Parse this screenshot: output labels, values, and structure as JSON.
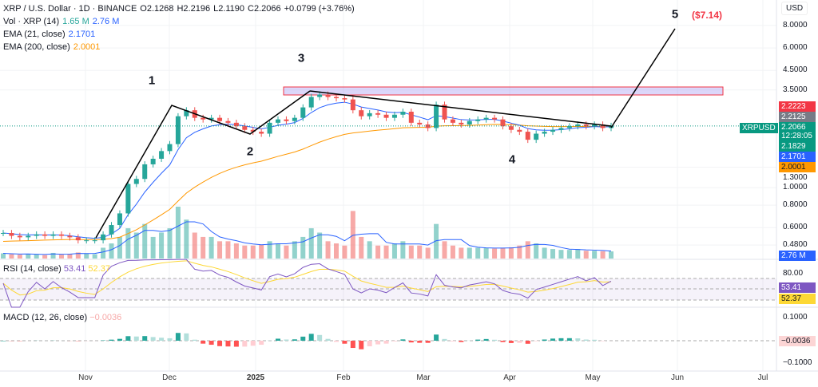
{
  "header": {
    "symbol": "XRP / U.S. Dollar · 1D · BINANCE",
    "open": "O2.1268",
    "high": "H2.2196",
    "low": "L2.1190",
    "close": "C2.2066",
    "change": "+0.0799 (+3.76%)"
  },
  "legend": {
    "vol_label": "Vol · XRP (14)",
    "vol_value": "1.65 M",
    "vol_ma": "2.76 M",
    "ema21_label": "EMA (21, close)",
    "ema21_value": "2.1701",
    "ema200_label": "EMA (200, close)",
    "ema200_value": "2.0001",
    "rsi_label": "RSI (14, close)",
    "rsi_value": "53.41",
    "rsi_ma": "52.37",
    "macd_label": "MACD (12, 26, close)",
    "macd_value": "−0.0036"
  },
  "axis": {
    "currency": "USD",
    "price_ticks": [
      "8.0000",
      "6.0000",
      "4.5000",
      "3.5000",
      "1.3000",
      "1.0000",
      "0.8000",
      "0.6000",
      "0.4800"
    ],
    "rsi_ticks": [
      "80.00"
    ],
    "macd_ticks": [
      "0.1000",
      "−0.1000"
    ],
    "time_ticks": [
      "Nov",
      "Dec",
      "2025",
      "Feb",
      "Mar",
      "Apr",
      "May",
      "Jun",
      "Jul"
    ],
    "scale": "log"
  },
  "tags": {
    "high": "2.2223",
    "prev": "2.2125",
    "symbol": "XRPUSD",
    "last": "2.2066",
    "countdown": "12:28:05",
    "low": "2.1829",
    "ema21": "2.1701",
    "ema200": "2.0001",
    "vol": "2.76 M",
    "rsi": "53.41",
    "rsi_ma": "52.37",
    "macd": "−0.0036"
  },
  "annotations": {
    "waves": [
      "1",
      "2",
      "3",
      "4",
      "5"
    ],
    "target": "($7.14)"
  },
  "colors": {
    "up": "#26a69a",
    "down": "#ef5350",
    "ema21": "#2962ff",
    "ema200": "#ff9800",
    "rsi": "#7e57c2",
    "rsi_ma": "#fdd835",
    "target": "#f23645"
  },
  "chart_data": {
    "type": "candlestick",
    "x_range": [
      "2024-10-01",
      "2025-05-07"
    ],
    "ylim": [
      0.48,
      8.0
    ],
    "closes": [
      0.56,
      0.54,
      0.53,
      0.54,
      0.55,
      0.54,
      0.55,
      0.54,
      0.53,
      0.51,
      0.51,
      0.51,
      0.55,
      0.62,
      0.72,
      1.05,
      1.12,
      1.35,
      1.45,
      1.6,
      1.75,
      2.5,
      2.7,
      2.45,
      2.4,
      2.45,
      2.35,
      2.3,
      2.2,
      2.1,
      2.05,
      2.0,
      2.3,
      2.4,
      2.35,
      2.45,
      2.8,
      3.2,
      3.3,
      3.2,
      3.15,
      3.1,
      2.7,
      2.5,
      2.6,
      2.55,
      2.45,
      2.55,
      2.65,
      2.3,
      2.25,
      2.15,
      2.9,
      2.4,
      2.3,
      2.25,
      2.35,
      2.4,
      2.45,
      2.4,
      2.2,
      2.1,
      2.05,
      1.85,
      2.0,
      2.05,
      2.1,
      2.15,
      2.2,
      2.25,
      2.2,
      2.25,
      2.15,
      2.21
    ],
    "volume": [
      1.2,
      1,
      0.9,
      1.1,
      1,
      0.8,
      1.3,
      0.9,
      1.1,
      1.4,
      1.2,
      1,
      2.5,
      3.5,
      5,
      7,
      6,
      8,
      5,
      6,
      7,
      12,
      9,
      6,
      5,
      5,
      4,
      4,
      3.5,
      3,
      3,
      3.2,
      4,
      3.5,
      3,
      4,
      5,
      7,
      6,
      4,
      3.5,
      3,
      11,
      5,
      4,
      3,
      3,
      3.5,
      4,
      3,
      3,
      2.5,
      8,
      4,
      3,
      2.5,
      2.5,
      2.5,
      2.4,
      2.3,
      2.5,
      2.6,
      3,
      4,
      3.5,
      2.5,
      2.2,
      2,
      2,
      2.2,
      1.8,
      1.8,
      1.7,
      1.65
    ]
  }
}
